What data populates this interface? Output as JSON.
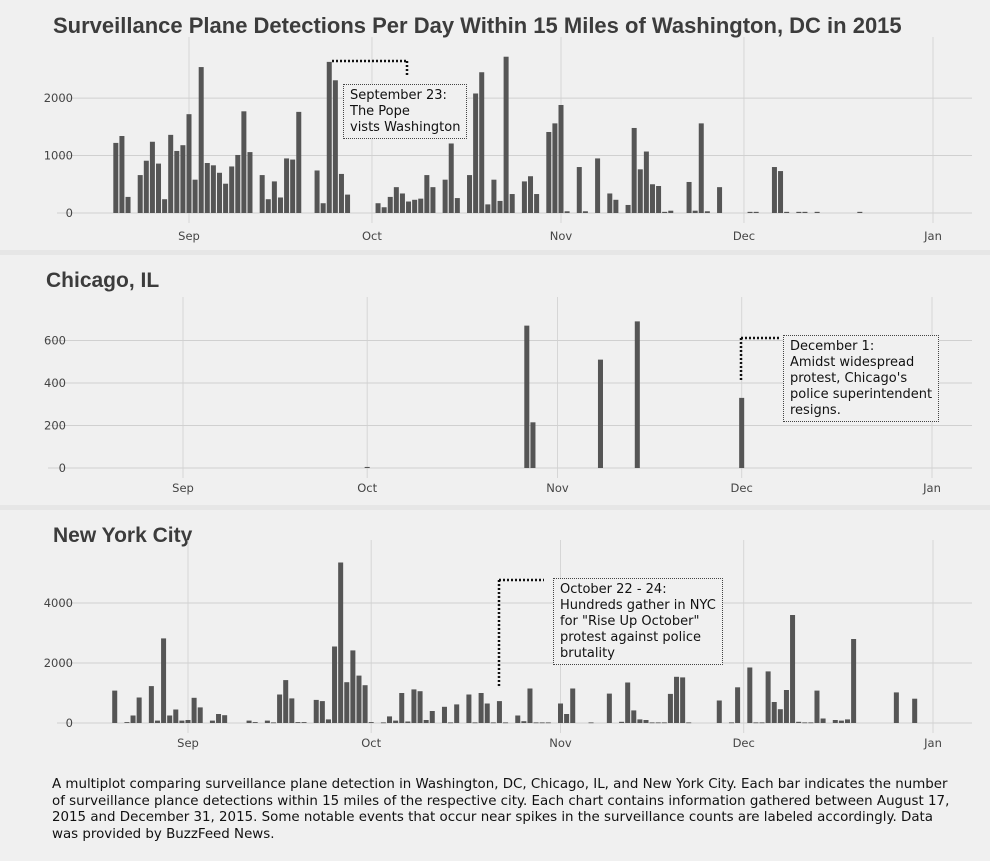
{
  "caption": "A multiplot comparing surveillance plane detection in Washington, DC, Chicago, IL, and New York City. Each bar indicates the number of surveillance plance detections within 15 miles of the respective city. Each chart contains information gathered between August 17, 2015 and December 31, 2015. Some notable events that occur near spikes in the surveillance counts are labeled accordingly. Data was provided by BuzzFeed News.",
  "chart_data": [
    {
      "type": "bar",
      "title": "Surveillance Plane Detections Per Day Within 15 Miles of Washington, DC in 2015",
      "xlabel": "",
      "ylabel": "",
      "x_ticks": [
        "Sep",
        "Oct",
        "Nov",
        "Dec",
        "Jan"
      ],
      "y_ticks": [
        0,
        1000,
        2000
      ],
      "ylim": [
        0,
        2750
      ],
      "grid": true,
      "bar_color": "#555555",
      "annotation": {
        "anchor_date": "2015-09-23",
        "lines": [
          "September 23:",
          "The Pope",
          "vists Washington"
        ]
      },
      "series": [
        {
          "x": [
            "2015-08-20",
            "2015-08-21",
            "2015-08-22",
            "2015-08-24",
            "2015-08-25",
            "2015-08-26",
            "2015-08-27",
            "2015-08-28",
            "2015-08-29",
            "2015-08-30",
            "2015-08-31",
            "2015-09-01",
            "2015-09-02",
            "2015-09-03",
            "2015-09-04",
            "2015-09-05",
            "2015-09-06",
            "2015-09-07",
            "2015-09-08",
            "2015-09-09",
            "2015-09-10",
            "2015-09-11",
            "2015-09-13",
            "2015-09-14",
            "2015-09-15",
            "2015-09-16",
            "2015-09-17",
            "2015-09-18",
            "2015-09-19",
            "2015-09-22",
            "2015-09-23",
            "2015-09-24",
            "2015-09-25",
            "2015-09-26",
            "2015-09-27",
            "2015-10-02",
            "2015-10-03",
            "2015-10-04",
            "2015-10-05",
            "2015-10-06",
            "2015-10-07",
            "2015-10-08",
            "2015-10-09",
            "2015-10-10",
            "2015-10-11",
            "2015-10-13",
            "2015-10-14",
            "2015-10-15",
            "2015-10-17",
            "2015-10-18",
            "2015-10-19",
            "2015-10-20",
            "2015-10-21",
            "2015-10-22",
            "2015-10-23",
            "2015-10-24",
            "2015-10-26",
            "2015-10-27",
            "2015-10-28",
            "2015-10-30",
            "2015-10-31",
            "2015-11-01",
            "2015-11-02",
            "2015-11-04",
            "2015-11-05",
            "2015-11-07",
            "2015-11-09",
            "2015-11-10",
            "2015-11-12",
            "2015-11-13",
            "2015-11-14",
            "2015-11-15",
            "2015-11-16",
            "2015-11-17",
            "2015-11-18",
            "2015-11-19",
            "2015-11-22",
            "2015-11-23",
            "2015-11-24",
            "2015-11-25",
            "2015-11-27",
            "2015-12-02",
            "2015-12-03",
            "2015-12-06",
            "2015-12-07",
            "2015-12-08",
            "2015-12-10",
            "2015-12-11",
            "2015-12-13",
            "2015-12-20"
          ],
          "values": [
            1220,
            1340,
            280,
            660,
            910,
            1240,
            860,
            240,
            1360,
            1080,
            1180,
            1720,
            580,
            2540,
            870,
            830,
            700,
            510,
            810,
            1010,
            1770,
            1060,
            660,
            240,
            550,
            270,
            950,
            930,
            1760,
            740,
            170,
            2630,
            2310,
            680,
            320,
            170,
            100,
            280,
            450,
            340,
            200,
            230,
            250,
            660,
            450,
            580,
            1210,
            260,
            660,
            2080,
            2450,
            150,
            580,
            210,
            2720,
            330,
            550,
            640,
            330,
            1410,
            1560,
            1880,
            30,
            800,
            30,
            950,
            340,
            230,
            140,
            1480,
            760,
            1070,
            500,
            470,
            20,
            40,
            540,
            40,
            1560,
            30,
            450,
            20,
            20,
            800,
            730,
            20,
            20,
            20,
            20,
            20
          ]
        }
      ]
    },
    {
      "type": "bar",
      "title": "Chicago, IL",
      "xlabel": "",
      "ylabel": "",
      "x_ticks": [
        "Sep",
        "Oct",
        "Nov",
        "Dec",
        "Jan"
      ],
      "y_ticks": [
        0,
        200,
        400,
        600
      ],
      "ylim": [
        0,
        720
      ],
      "grid": true,
      "bar_color": "#555555",
      "annotation": {
        "anchor_date": "2015-12-01",
        "lines": [
          "December 1:",
          "Amidst widespread",
          "protest, Chicago's",
          "police superintendent",
          "resigns."
        ]
      },
      "series": [
        {
          "x": [
            "2015-10-01",
            "2015-10-27",
            "2015-10-28",
            "2015-11-08",
            "2015-11-14",
            "2015-12-01"
          ],
          "values": [
            5,
            670,
            215,
            510,
            690,
            330
          ]
        }
      ]
    },
    {
      "type": "bar",
      "title": "New York City",
      "xlabel": "",
      "ylabel": "",
      "x_ticks": [
        "Sep",
        "Oct",
        "Nov",
        "Dec",
        "Jan"
      ],
      "y_ticks": [
        0,
        2000,
        4000
      ],
      "ylim": [
        0,
        5500
      ],
      "grid": true,
      "bar_color": "#555555",
      "annotation": {
        "anchor_date": "2015-10-22",
        "lines": [
          "October 22 - 24:",
          "Hundreds gather in NYC",
          "for \"Rise Up October\"",
          "protest against police",
          "brutality"
        ]
      },
      "series": [
        {
          "x": [
            "2015-08-20",
            "2015-08-22",
            "2015-08-23",
            "2015-08-24",
            "2015-08-26",
            "2015-08-27",
            "2015-08-28",
            "2015-08-29",
            "2015-08-30",
            "2015-08-31",
            "2015-09-01",
            "2015-09-02",
            "2015-09-03",
            "2015-09-05",
            "2015-09-06",
            "2015-09-07",
            "2015-09-11",
            "2015-09-12",
            "2015-09-14",
            "2015-09-15",
            "2015-09-16",
            "2015-09-17",
            "2015-09-18",
            "2015-09-19",
            "2015-09-20",
            "2015-09-22",
            "2015-09-23",
            "2015-09-24",
            "2015-09-25",
            "2015-09-26",
            "2015-09-27",
            "2015-09-28",
            "2015-09-29",
            "2015-09-30",
            "2015-10-01",
            "2015-10-03",
            "2015-10-04",
            "2015-10-05",
            "2015-10-06",
            "2015-10-07",
            "2015-10-08",
            "2015-10-09",
            "2015-10-10",
            "2015-10-11",
            "2015-10-13",
            "2015-10-14",
            "2015-10-15",
            "2015-10-17",
            "2015-10-18",
            "2015-10-19",
            "2015-10-20",
            "2015-10-21",
            "2015-10-22",
            "2015-10-23",
            "2015-10-25",
            "2015-10-26",
            "2015-10-27",
            "2015-10-28",
            "2015-10-29",
            "2015-10-30",
            "2015-11-01",
            "2015-11-02",
            "2015-11-03",
            "2015-11-06",
            "2015-11-09",
            "2015-11-11",
            "2015-11-12",
            "2015-11-13",
            "2015-11-14",
            "2015-11-15",
            "2015-11-16",
            "2015-11-17",
            "2015-11-18",
            "2015-11-19",
            "2015-11-20",
            "2015-11-21",
            "2015-11-22",
            "2015-11-27",
            "2015-11-29",
            "2015-11-30",
            "2015-12-02",
            "2015-12-03",
            "2015-12-04",
            "2015-12-05",
            "2015-12-06",
            "2015-12-07",
            "2015-12-08",
            "2015-12-09",
            "2015-12-10",
            "2015-12-11",
            "2015-12-12",
            "2015-12-13",
            "2015-12-14",
            "2015-12-16",
            "2015-12-17",
            "2015-12-18",
            "2015-12-19",
            "2015-12-26",
            "2015-12-29"
          ],
          "values": [
            1080,
            30,
            250,
            850,
            1230,
            80,
            2820,
            250,
            450,
            80,
            100,
            840,
            520,
            80,
            300,
            260,
            80,
            30,
            80,
            20,
            950,
            1430,
            820,
            30,
            30,
            770,
            730,
            120,
            2550,
            5350,
            1360,
            2420,
            1580,
            1260,
            30,
            20,
            220,
            80,
            1000,
            50,
            1120,
            1060,
            100,
            400,
            540,
            20,
            620,
            950,
            20,
            1000,
            650,
            20,
            730,
            20,
            250,
            60,
            1150,
            20,
            20,
            20,
            650,
            300,
            1150,
            20,
            980,
            40,
            1350,
            420,
            120,
            100,
            20,
            20,
            20,
            970,
            1540,
            1520,
            20,
            750,
            20,
            1190,
            1850,
            20,
            20,
            1720,
            700,
            460,
            1100,
            3600,
            40,
            20,
            20,
            1080,
            150,
            100,
            80,
            120,
            2800,
            1020,
            810
          ]
        }
      ]
    }
  ]
}
